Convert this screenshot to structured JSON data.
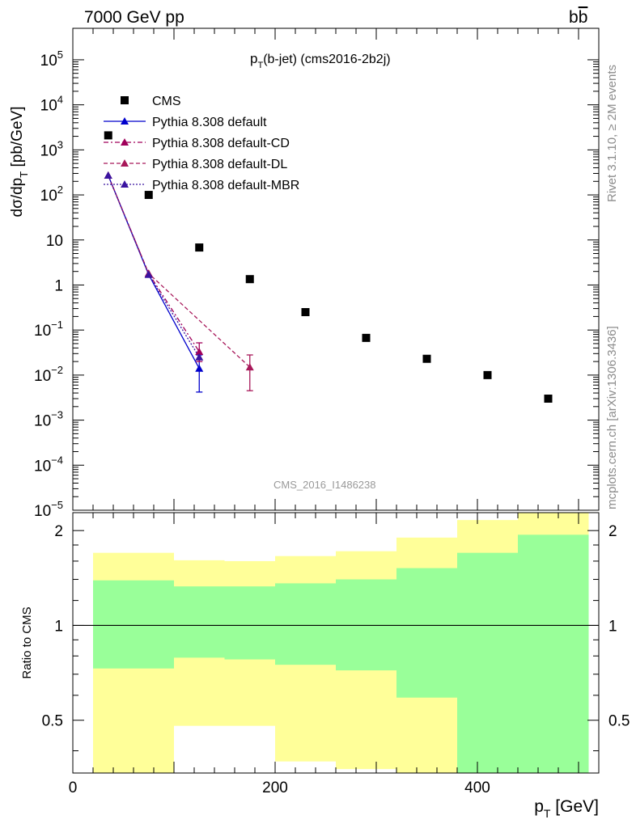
{
  "header": {
    "left": "7000 GeV pp",
    "right_main": "b",
    "right_bar": "b"
  },
  "side_labels": {
    "top": "Rivet 3.1.10, ≥ 2M events",
    "bottom": "mcplots.cern.ch [arXiv:1306.3436]"
  },
  "chart_data": [
    {
      "type": "scatter",
      "title": "p_T(b-jet) (cms2016-2b2j)",
      "title_main": "p",
      "title_sub": "T",
      "title_rest": "(b-jet) (cms2016-2b2j)",
      "watermark": "CMS_2016_I1486238",
      "ylabel": "dσ/dp_T [pb/GeV]",
      "ylabel_parts": {
        "pre": "dσ/dp",
        "sub": "T",
        "post": " [pb/GeV]"
      },
      "xlim": [
        0,
        520
      ],
      "ylim": [
        1e-05,
        500000
      ],
      "yscale": "log",
      "y_ticks": [
        {
          "v": 100000,
          "base": "10",
          "exp": "5"
        },
        {
          "v": 10000,
          "base": "10",
          "exp": "4"
        },
        {
          "v": 1000,
          "base": "10",
          "exp": "3"
        },
        {
          "v": 100,
          "base": "10",
          "exp": "2"
        },
        {
          "v": 10,
          "base": "10",
          "exp": ""
        },
        {
          "v": 1,
          "base": "1",
          "exp": ""
        },
        {
          "v": 0.1,
          "base": "10",
          "exp": "−1"
        },
        {
          "v": 0.01,
          "base": "10",
          "exp": "−2"
        },
        {
          "v": 0.001,
          "base": "10",
          "exp": "−3"
        },
        {
          "v": 0.0001,
          "base": "10",
          "exp": "−4"
        },
        {
          "v": 1e-05,
          "base": "10",
          "exp": "−5"
        }
      ],
      "legend": {
        "placement": "top-left"
      },
      "series": [
        {
          "name": "CMS",
          "color": "#000000",
          "style": "marker-square",
          "x": [
            35,
            75,
            125,
            175,
            230,
            290,
            350,
            410,
            470
          ],
          "y": [
            2100,
            100,
            6.8,
            1.35,
            0.25,
            0.067,
            0.023,
            0.01,
            0.003
          ]
        },
        {
          "name": "Pythia 8.308 default",
          "color": "#0000cc",
          "style": "solid",
          "x": [
            35,
            75,
            125
          ],
          "y": [
            270,
            1.7,
            0.014
          ],
          "err_lo": [
            null,
            null,
            0.0042
          ],
          "err_hi": [
            null,
            null,
            0.028
          ]
        },
        {
          "name": "Pythia 8.308 default-CD",
          "color": "#a0005a",
          "style": "dashdot",
          "x": [
            35,
            75,
            125
          ],
          "y": [
            270,
            1.8,
            0.033
          ],
          "err_lo": [
            null,
            null,
            0.02
          ],
          "err_hi": [
            null,
            null,
            0.052
          ]
        },
        {
          "name": "Pythia 8.308 default-DL",
          "color": "#a8185a",
          "style": "dashed",
          "x": [
            35,
            75,
            175
          ],
          "y": [
            270,
            1.8,
            0.015
          ],
          "err_lo": [
            null,
            null,
            0.0045
          ],
          "err_hi": [
            null,
            null,
            0.028
          ]
        },
        {
          "name": "Pythia 8.308 default-MBR",
          "color": "#3a14a0",
          "style": "dotted",
          "x": [
            35,
            75,
            125
          ],
          "y": [
            270,
            1.7,
            0.025
          ],
          "err_lo": [
            null,
            null,
            null
          ],
          "err_hi": [
            null,
            null,
            null
          ]
        }
      ]
    },
    {
      "type": "area",
      "ylabel": "Ratio to CMS",
      "xlabel": "p_T [GeV]",
      "xlabel_parts": {
        "pre": "p",
        "sub": "T",
        "post": " [GeV]"
      },
      "xlim": [
        0,
        520
      ],
      "ylim": [
        0.34,
        2.28
      ],
      "x_ticks": [
        0,
        200,
        400
      ],
      "y_ticks": [
        0.5,
        1,
        2
      ],
      "reference_line": 1,
      "bins": [
        {
          "x0": 20,
          "x1": 100,
          "stat_lo": 0.73,
          "stat_hi": 1.39,
          "tot_lo": 0.34,
          "tot_hi": 1.7
        },
        {
          "x0": 100,
          "x1": 150,
          "stat_lo": 0.79,
          "stat_hi": 1.33,
          "tot_lo": 0.48,
          "tot_hi": 1.61
        },
        {
          "x0": 150,
          "x1": 200,
          "stat_lo": 0.78,
          "stat_hi": 1.33,
          "tot_lo": 0.48,
          "tot_hi": 1.6
        },
        {
          "x0": 200,
          "x1": 260,
          "stat_lo": 0.75,
          "stat_hi": 1.36,
          "tot_lo": 0.37,
          "tot_hi": 1.66
        },
        {
          "x0": 260,
          "x1": 320,
          "stat_lo": 0.72,
          "stat_hi": 1.4,
          "tot_lo": 0.35,
          "tot_hi": 1.72
        },
        {
          "x0": 320,
          "x1": 380,
          "stat_lo": 0.59,
          "stat_hi": 1.52,
          "tot_lo": 0.34,
          "tot_hi": 1.9
        },
        {
          "x0": 380,
          "x1": 440,
          "stat_lo": 0.34,
          "stat_hi": 1.7,
          "tot_lo": 0.34,
          "tot_hi": 2.16
        },
        {
          "x0": 440,
          "x1": 510,
          "stat_lo": 0.34,
          "stat_hi": 1.94,
          "tot_lo": 0.34,
          "tot_hi": 2.28
        }
      ],
      "band_colors": {
        "stat": "#99ff99",
        "total": "#ffff99"
      }
    }
  ]
}
